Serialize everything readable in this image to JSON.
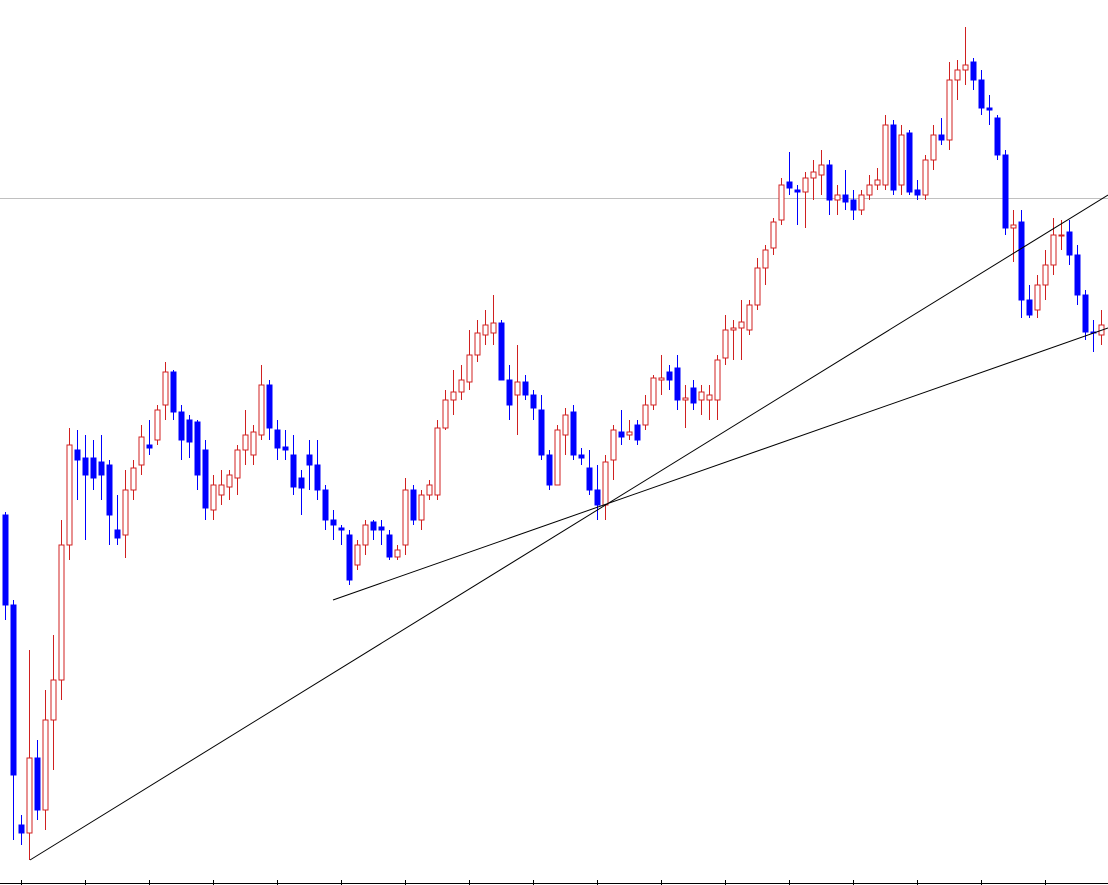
{
  "chart_data": {
    "type": "candlestick",
    "xlim": [
      -0.625,
      137.875
    ],
    "ylim": [
      0,
      885
    ],
    "up_color": "#d02020",
    "down_color": "#0000ff",
    "open": [
      370,
      280,
      60,
      52,
      127,
      75,
      165,
      205,
      340,
      435,
      427,
      427,
      423,
      420,
      355,
      350,
      395,
      420,
      440,
      445,
      480,
      513,
      473,
      465,
      463,
      435,
      375,
      390,
      398,
      407,
      435,
      430,
      450,
      500,
      455,
      438,
      430,
      407,
      430,
      420,
      395,
      365,
      357,
      350,
      320,
      340,
      363,
      358,
      350,
      328,
      340,
      395,
      365,
      390,
      390,
      457,
      485,
      493,
      503,
      530,
      550,
      552,
      562,
      505,
      490,
      503,
      490,
      475,
      430,
      400,
      450,
      473,
      430,
      417,
      395,
      380,
      425,
      453,
      450,
      460,
      460,
      480,
      505,
      513,
      517,
      485,
      497,
      485,
      485,
      485,
      527,
      555,
      557,
      555,
      580,
      617,
      637,
      665,
      703,
      695,
      693,
      707,
      710,
      720,
      685,
      690,
      685,
      675,
      690,
      700,
      700,
      760,
      700,
      752,
      695,
      690,
      725,
      750,
      745,
      805,
      815,
      823,
      805,
      777,
      767,
      730,
      657,
      663,
      585,
      575,
      600,
      620,
      650,
      653,
      630,
      590,
      553,
      550
    ],
    "high": [
      373,
      285,
      70,
      235,
      145,
      195,
      250,
      365,
      457,
      455,
      450,
      445,
      450,
      425,
      390,
      415,
      425,
      460,
      465,
      480,
      523,
      515,
      480,
      470,
      465,
      445,
      410,
      415,
      415,
      440,
      475,
      460,
      520,
      505,
      465,
      455,
      450,
      415,
      445,
      445,
      400,
      375,
      360,
      355,
      345,
      365,
      365,
      365,
      355,
      340,
      407,
      400,
      395,
      405,
      465,
      495,
      515,
      520,
      555,
      565,
      575,
      590,
      565,
      520,
      540,
      510,
      495,
      490,
      435,
      460,
      477,
      480,
      437,
      435,
      420,
      430,
      460,
      475,
      465,
      465,
      490,
      510,
      530,
      520,
      530,
      500,
      505,
      500,
      500,
      530,
      570,
      565,
      585,
      585,
      627,
      640,
      667,
      707,
      733,
      700,
      713,
      725,
      735,
      725,
      700,
      715,
      695,
      695,
      710,
      717,
      770,
      765,
      760,
      755,
      705,
      730,
      760,
      767,
      823,
      825,
      858,
      827,
      815,
      790,
      770,
      735,
      675,
      675,
      600,
      610,
      635,
      667,
      665,
      665,
      640,
      595,
      565,
      575
    ],
    "low": [
      265,
      45,
      40,
      25,
      65,
      55,
      115,
      185,
      325,
      385,
      345,
      395,
      385,
      340,
      340,
      327,
      385,
      410,
      430,
      440,
      465,
      465,
      425,
      427,
      395,
      365,
      365,
      380,
      385,
      390,
      420,
      420,
      445,
      445,
      425,
      425,
      390,
      370,
      395,
      385,
      355,
      345,
      340,
      300,
      315,
      330,
      345,
      340,
      325,
      325,
      330,
      360,
      355,
      385,
      385,
      455,
      470,
      485,
      495,
      523,
      540,
      540,
      505,
      465,
      450,
      485,
      465,
      425,
      395,
      400,
      430,
      425,
      420,
      390,
      365,
      365,
      405,
      440,
      445,
      440,
      455,
      475,
      490,
      495,
      475,
      457,
      475,
      470,
      465,
      465,
      520,
      525,
      525,
      550,
      575,
      600,
      630,
      660,
      690,
      660,
      657,
      685,
      690,
      670,
      670,
      675,
      665,
      670,
      685,
      695,
      695,
      690,
      690,
      690,
      685,
      685,
      715,
      740,
      735,
      785,
      800,
      795,
      770,
      760,
      725,
      650,
      623,
      567,
      567,
      567,
      585,
      610,
      635,
      620,
      580,
      545,
      533,
      540
    ],
    "close": [
      280,
      110,
      52,
      127,
      75,
      165,
      205,
      340,
      440,
      425,
      410,
      407,
      410,
      370,
      347,
      395,
      417,
      448,
      437,
      475,
      513,
      473,
      445,
      443,
      410,
      377,
      400,
      400,
      410,
      435,
      450,
      453,
      500,
      457,
      437,
      435,
      398,
      397,
      420,
      395,
      365,
      360,
      355,
      305,
      340,
      360,
      355,
      355,
      328,
      335,
      395,
      365,
      390,
      400,
      457,
      485,
      493,
      505,
      530,
      552,
      560,
      562,
      505,
      480,
      503,
      490,
      477,
      430,
      400,
      455,
      470,
      430,
      427,
      395,
      380,
      423,
      455,
      448,
      453,
      445,
      480,
      507,
      507,
      505,
      485,
      487,
      482,
      493,
      490,
      525,
      555,
      557,
      563,
      580,
      617,
      635,
      663,
      700,
      697,
      693,
      707,
      713,
      720,
      685,
      690,
      683,
      675,
      690,
      700,
      705,
      760,
      695,
      750,
      693,
      690,
      725,
      750,
      745,
      805,
      815,
      820,
      805,
      777,
      775,
      730,
      657,
      660,
      585,
      570,
      600,
      620,
      650,
      650,
      630,
      590,
      553,
      552,
      560
    ],
    "hlines": [
      {
        "value": 687,
        "color": "#c0c0c0"
      }
    ],
    "trendlines": [
      {
        "x": [
          3.125,
          137.875
        ],
        "y": [
          25,
          690
        ],
        "color": "#000000"
      },
      {
        "x": [
          41,
          137.875
        ],
        "y": [
          285,
          557
        ],
        "color": "#000000"
      }
    ]
  }
}
